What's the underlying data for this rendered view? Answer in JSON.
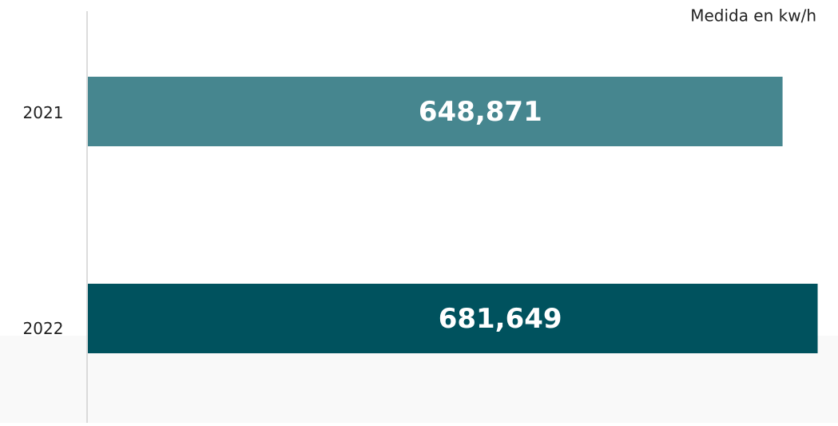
{
  "chart_data": {
    "type": "hbar",
    "subtitle": "Medida en kw/h",
    "categories": [
      "2021",
      "2022"
    ],
    "values": [
      648871,
      681649
    ],
    "value_labels": [
      "648,871",
      "681,649"
    ],
    "colors": [
      "#46868f",
      "#00525e"
    ],
    "xlim": [
      0,
      682000
    ]
  }
}
